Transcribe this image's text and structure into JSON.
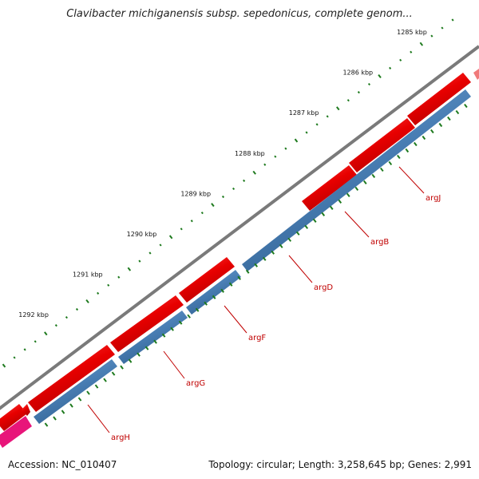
{
  "title": "Clavibacter michiganensis subsp. sepedonicus, complete genom...",
  "footer": {
    "accession_label": "Accession:",
    "accession": "NC_010407",
    "summary": "Topology: circular; Length: 3,258,645 bp; Genes: 2,991"
  },
  "colors": {
    "backbone": "#7a7a7a",
    "forward_gene": "#e80000",
    "reverse_gene": "#4a7fb5",
    "other_gene": "#e8157a",
    "tick": "#1e7a1e",
    "label": "#c00000"
  },
  "ticks": [
    {
      "label": "1285 kbp",
      "kbp": 1285
    },
    {
      "label": "1286 kbp",
      "kbp": 1286
    },
    {
      "label": "1287 kbp",
      "kbp": 1287
    },
    {
      "label": "1288 kbp",
      "kbp": 1288
    },
    {
      "label": "1289 kbp",
      "kbp": 1289
    },
    {
      "label": "1290 kbp",
      "kbp": 1290
    },
    {
      "label": "1291 kbp",
      "kbp": 1291
    },
    {
      "label": "1292 kbp",
      "kbp": 1292
    }
  ],
  "genes": [
    {
      "name": "argJ"
    },
    {
      "name": "argB"
    },
    {
      "name": "argD"
    },
    {
      "name": "argF"
    },
    {
      "name": "argG"
    },
    {
      "name": "argH"
    }
  ]
}
